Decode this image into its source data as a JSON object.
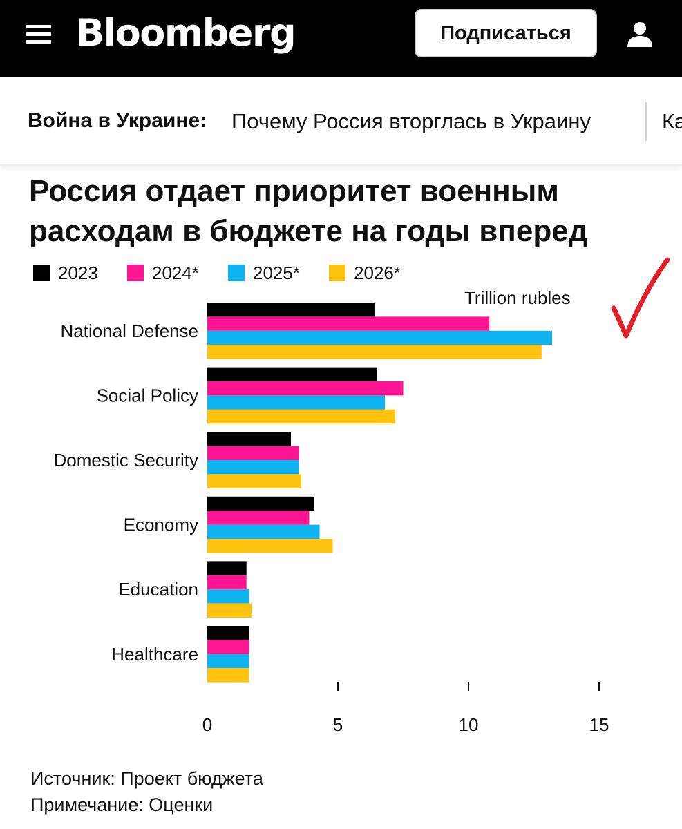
{
  "header": {
    "logo": "Bloomberg",
    "subscribe_label": "Подписаться"
  },
  "nav": {
    "label": "Война в Украине:",
    "link": "Почему Россия вторглась в Украину",
    "link_next": "Ка"
  },
  "chart_data": {
    "type": "bar",
    "orientation": "horizontal",
    "title": "Россия отдает приоритет военным расходам в бюджете на годы вперед",
    "unit": "Trillion rubles",
    "categories": [
      "National Defense",
      "Social Policy",
      "Domestic Security",
      "Economy",
      "Education",
      "Healthcare"
    ],
    "series": [
      {
        "name": "2023",
        "color": "#000000",
        "values": [
          6.4,
          6.5,
          3.2,
          4.1,
          1.5,
          1.6
        ]
      },
      {
        "name": "2024*",
        "color": "#ff1493",
        "values": [
          10.8,
          7.5,
          3.5,
          3.9,
          1.5,
          1.6
        ]
      },
      {
        "name": "2025*",
        "color": "#0eb4f0",
        "values": [
          13.2,
          6.8,
          3.5,
          4.3,
          1.6,
          1.6
        ]
      },
      {
        "name": "2026*",
        "color": "#ffc20e",
        "values": [
          12.8,
          7.2,
          3.6,
          4.8,
          1.7,
          1.6
        ]
      }
    ],
    "xlim": [
      0,
      15
    ],
    "xticks": [
      "0",
      "5",
      "10",
      "15"
    ],
    "legend_position": "top-left",
    "grid": false
  },
  "annotation": {
    "icon": "red-checkmark-icon",
    "color": "#e0202a"
  },
  "footer": {
    "source": "Источник: Проект бюджета",
    "note": "Примечание: Оценки"
  }
}
